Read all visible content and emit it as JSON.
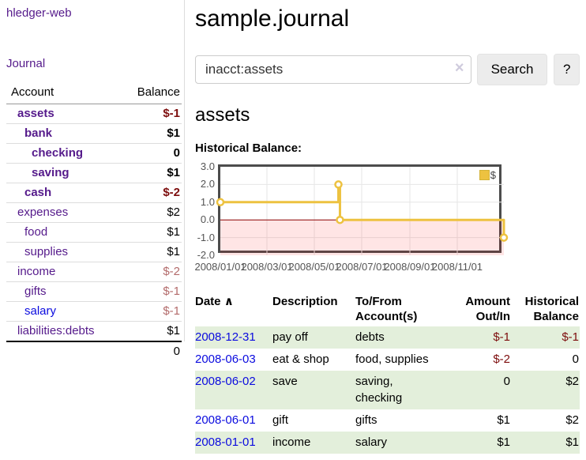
{
  "app": {
    "brand": "hledger-web",
    "nav": {
      "journal": "Journal"
    }
  },
  "sidebar": {
    "table": {
      "col_account": "Account",
      "col_balance": "Balance",
      "rows": [
        {
          "account": "assets",
          "balance": "$-1",
          "depth": 1,
          "bold": true
        },
        {
          "account": "bank",
          "balance": "$1",
          "depth": 2,
          "bold": true
        },
        {
          "account": "checking",
          "balance": "0",
          "depth": 3,
          "bold": true
        },
        {
          "account": "saving",
          "balance": "$1",
          "depth": 3,
          "bold": true
        },
        {
          "account": "cash",
          "balance": "$-2",
          "depth": 2,
          "bold": true
        },
        {
          "account": "expenses",
          "balance": "$2",
          "depth": 1,
          "bold": false
        },
        {
          "account": "food",
          "balance": "$1",
          "depth": 2,
          "bold": false
        },
        {
          "account": "supplies",
          "balance": "$1",
          "depth": 2,
          "bold": false
        },
        {
          "account": "income",
          "balance": "$-2",
          "depth": 1,
          "bold": false
        },
        {
          "account": "gifts",
          "balance": "$-1",
          "depth": 2,
          "bold": false
        },
        {
          "account": "salary",
          "balance": "$-1",
          "depth": 2,
          "bold": false
        },
        {
          "account": "liabilities:debts",
          "balance": "$1",
          "depth": 1,
          "bold": false
        }
      ],
      "total": "0"
    }
  },
  "main": {
    "title": "sample.journal",
    "search": {
      "value": "inacct:assets",
      "clear_icon": "×",
      "search_button": "Search",
      "help_button": "?"
    },
    "account_heading": "assets"
  },
  "chart_data": {
    "type": "line",
    "title": "Historical Balance:",
    "legend": {
      "position": "top-right",
      "entries": [
        {
          "label": "$",
          "color": "#edc240"
        }
      ]
    },
    "x": {
      "lim": [
        "2008-01-01",
        "2008-12-31"
      ],
      "ticks": [
        [
          "2008-01-01",
          "2008/01/01"
        ],
        [
          "2008-03-01",
          "2008/03/01"
        ],
        [
          "2008-05-01",
          "2008/05/01"
        ],
        [
          "2008-07-01",
          "2008/07/01"
        ],
        [
          "2008-09-01",
          "2008/09/01"
        ],
        [
          "2008-11-01",
          "2008/11/01"
        ]
      ]
    },
    "y": {
      "lim": [
        -2,
        3
      ],
      "ticks": [
        [
          3,
          "3.0"
        ],
        [
          2,
          "2.0"
        ],
        [
          1,
          "1.0"
        ],
        [
          0,
          "0.0"
        ],
        [
          -1,
          "-1.0"
        ],
        [
          -2,
          "-2.0"
        ]
      ]
    },
    "series": [
      {
        "name": "$",
        "color": "#edc240",
        "step": true,
        "marker": "open-circle",
        "points": [
          [
            "2008-01-01",
            1
          ],
          [
            "2008-06-01",
            2
          ],
          [
            "2008-06-03",
            0
          ],
          [
            "2008-12-31",
            -1
          ]
        ]
      }
    ],
    "grid_color": "#e6e6e6",
    "border_color": "#4c4c4c",
    "zero_line_color": "#8b0000",
    "negative_region_fill": "rgba(255,0,0,0.10)"
  },
  "register": {
    "headers": {
      "date": "Date",
      "sort_icon": "∧",
      "description": "Description",
      "accounts": "To/From Account(s)",
      "amount": "Amount Out/In",
      "balance": "Historical Balance"
    },
    "rows": [
      {
        "date": "2008-12-31",
        "description": "pay off",
        "accounts": "debts",
        "amount": "$-1",
        "balance": "$-1"
      },
      {
        "date": "2008-06-03",
        "description": "eat & shop",
        "accounts": "food, supplies",
        "amount": "$-2",
        "balance": "0"
      },
      {
        "date": "2008-06-02",
        "description": "save",
        "accounts": "saving, checking",
        "amount": "0",
        "balance": "$2"
      },
      {
        "date": "2008-06-01",
        "description": "gift",
        "accounts": "gifts",
        "amount": "$1",
        "balance": "$2"
      },
      {
        "date": "2008-01-01",
        "description": "income",
        "accounts": "salary",
        "amount": "$1",
        "balance": "$1"
      }
    ]
  }
}
